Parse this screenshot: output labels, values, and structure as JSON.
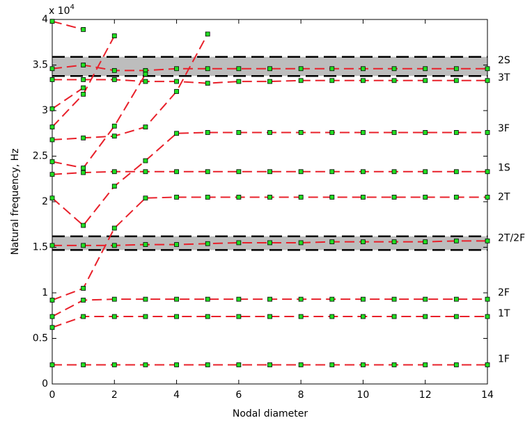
{
  "chart_data": {
    "type": "line",
    "xlabel": "Nodal diameter",
    "ylabel": "Natural frequency, Hz",
    "y_multiplier": {
      "base": "x 10",
      "exponent": "4"
    },
    "x": [
      0,
      1,
      2,
      3,
      4,
      5,
      6,
      7,
      8,
      9,
      10,
      11,
      12,
      13,
      14
    ],
    "xlim": [
      0,
      14
    ],
    "xticks": [
      0,
      2,
      4,
      6,
      8,
      10,
      12,
      14
    ],
    "ylim": [
      0,
      4
    ],
    "yticks": [
      0,
      0.5,
      1,
      1.5,
      2,
      2.5,
      3,
      3.5,
      4
    ],
    "line_color": "#e8202a",
    "marker_color": "#22dd22",
    "band_color": "#bdbdbd",
    "bands": [
      [
        1.47,
        1.62
      ],
      [
        3.38,
        3.59
      ]
    ],
    "annotations": [
      {
        "text": "2S",
        "y": 3.55
      },
      {
        "text": "3T",
        "y": 3.36
      },
      {
        "text": "3F",
        "y": 2.8
      },
      {
        "text": "1S",
        "y": 2.37
      },
      {
        "text": "2T",
        "y": 2.05
      },
      {
        "text": "2T/2F",
        "y": 1.6
      },
      {
        "text": "2F",
        "y": 1.0
      },
      {
        "text": "1T",
        "y": 0.77
      },
      {
        "text": "1F",
        "y": 0.27
      }
    ],
    "series": [
      {
        "values": [
          0.21,
          0.21,
          0.21,
          0.21,
          0.21,
          0.21,
          0.21,
          0.21,
          0.21,
          0.21,
          0.21,
          0.21,
          0.21,
          0.21,
          0.21
        ]
      },
      {
        "values": [
          0.62,
          0.74,
          0.74,
          0.74,
          0.74,
          0.74,
          0.74,
          0.74,
          0.74,
          0.74,
          0.74,
          0.74,
          0.74,
          0.74,
          0.74
        ]
      },
      {
        "values": [
          0.74,
          0.92,
          0.93,
          0.93,
          0.93,
          0.93,
          0.93,
          0.93,
          0.93,
          0.93,
          0.93,
          0.93,
          0.93,
          0.93,
          0.93
        ]
      },
      {
        "values": [
          0.92,
          1.05,
          1.71,
          2.04,
          2.05,
          2.05,
          2.05,
          2.05,
          2.05,
          2.05,
          2.05,
          2.05,
          2.05,
          2.05,
          2.05
        ]
      },
      {
        "values": [
          1.52,
          1.52,
          1.52,
          1.53,
          1.53,
          1.54,
          1.55,
          1.55,
          1.55,
          1.56,
          1.56,
          1.56,
          1.56,
          1.57,
          1.57
        ]
      },
      {
        "values": [
          2.04,
          1.74,
          2.17,
          2.45,
          2.75,
          2.76,
          2.76,
          2.76,
          2.76,
          2.76,
          2.76,
          2.76,
          2.76,
          2.76,
          2.76
        ]
      },
      {
        "values": [
          2.3,
          2.32,
          2.33,
          2.33,
          2.33,
          2.33,
          2.33,
          2.33,
          2.33,
          2.33,
          2.33,
          2.33,
          2.33,
          2.33,
          2.33
        ]
      },
      {
        "values": [
          3.34,
          3.34,
          3.34,
          3.32,
          3.32,
          3.3,
          3.32,
          3.32,
          3.33,
          3.33,
          3.33,
          3.33,
          3.33,
          3.33,
          3.33
        ]
      },
      {
        "values": [
          3.46,
          3.5,
          3.44,
          3.44,
          3.46,
          3.46,
          3.46,
          3.46,
          3.46,
          3.46,
          3.46,
          3.46,
          3.46,
          3.46,
          3.46
        ]
      },
      {
        "values": [
          2.44,
          2.37,
          2.83,
          3.4,
          null,
          null,
          null,
          null,
          null,
          null,
          null,
          null,
          null,
          null,
          null
        ]
      },
      {
        "values": [
          2.68,
          2.7,
          2.72,
          2.82,
          3.21,
          3.84,
          null,
          null,
          null,
          null,
          null,
          null,
          null,
          null,
          null
        ]
      },
      {
        "values": [
          2.82,
          3.18,
          3.82,
          null,
          null,
          null,
          null,
          null,
          null,
          null,
          null,
          null,
          null,
          null,
          null
        ]
      },
      {
        "values": [
          3.02,
          3.25,
          null,
          null,
          null,
          null,
          null,
          null,
          null,
          null,
          null,
          null,
          null,
          null,
          null
        ]
      },
      {
        "values": [
          3.98,
          3.89,
          null,
          null,
          null,
          null,
          null,
          null,
          null,
          null,
          null,
          null,
          null,
          null,
          null
        ]
      }
    ]
  }
}
